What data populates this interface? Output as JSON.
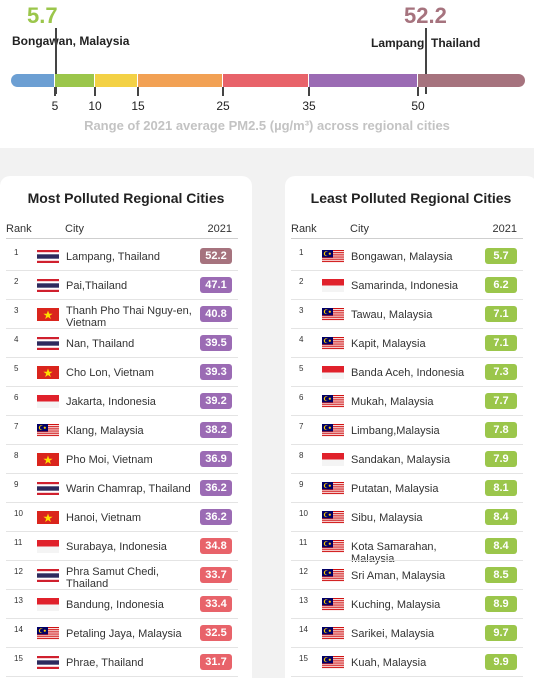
{
  "range": {
    "min": {
      "value": "5.7",
      "city": "Bongawan, Malaysia",
      "color": "#9bc64b"
    },
    "max": {
      "value": "52.2",
      "city": "Lampang, Thailand",
      "color": "#a6737e"
    },
    "caption": "Range of 2021 average PM2.5 (µg/m³) across regional cities",
    "ticks": [
      "5",
      "10",
      "15",
      "25",
      "35",
      "50"
    ],
    "bands": [
      {
        "from": 0,
        "to": 5,
        "color": "#6c9fd3"
      },
      {
        "from": 5,
        "to": 10,
        "color": "#9bc64b"
      },
      {
        "from": 10,
        "to": 15,
        "color": "#f3d145"
      },
      {
        "from": 15,
        "to": 25,
        "color": "#f2a154"
      },
      {
        "from": 25,
        "to": 35,
        "color": "#e8636a"
      },
      {
        "from": 35,
        "to": 50,
        "color": "#9b6bb4"
      },
      {
        "from": 50,
        "to": 62,
        "color": "#a6737e"
      }
    ]
  },
  "chart_data": [
    {
      "type": "table",
      "title": "Most Polluted Regional Cities",
      "columns": [
        "Rank",
        "City",
        "2021"
      ],
      "rows": [
        {
          "rank": "1",
          "city": "Lampang, Thailand",
          "flag": "th",
          "value": "52.2",
          "color": "#a6737e"
        },
        {
          "rank": "2",
          "city": "Pai,Thailand",
          "flag": "th",
          "value": "47.1",
          "color": "#9b6bb4"
        },
        {
          "rank": "3",
          "city": "Thanh Pho Thai Nguy-en, Vietnam",
          "flag": "vn",
          "value": "40.8",
          "color": "#9b6bb4"
        },
        {
          "rank": "4",
          "city": "Nan, Thailand",
          "flag": "th",
          "value": "39.5",
          "color": "#9b6bb4"
        },
        {
          "rank": "5",
          "city": "Cho Lon, Vietnam",
          "flag": "vn",
          "value": "39.3",
          "color": "#9b6bb4"
        },
        {
          "rank": "6",
          "city": "Jakarta, Indonesia",
          "flag": "id",
          "value": "39.2",
          "color": "#9b6bb4"
        },
        {
          "rank": "7",
          "city": "Klang, Malaysia",
          "flag": "my",
          "value": "38.2",
          "color": "#9b6bb4"
        },
        {
          "rank": "8",
          "city": "Pho Moi, Vietnam",
          "flag": "vn",
          "value": "36.9",
          "color": "#9b6bb4"
        },
        {
          "rank": "9",
          "city": "Warin Chamrap, Thailand",
          "flag": "th",
          "value": "36.2",
          "color": "#9b6bb4"
        },
        {
          "rank": "10",
          "city": "Hanoi, Vietnam",
          "flag": "vn",
          "value": "36.2",
          "color": "#9b6bb4"
        },
        {
          "rank": "11",
          "city": "Surabaya, Indonesia",
          "flag": "id",
          "value": "34.8",
          "color": "#e8636a"
        },
        {
          "rank": "12",
          "city": "Phra Samut Chedi, Thailand",
          "flag": "th",
          "value": "33.7",
          "color": "#e8636a"
        },
        {
          "rank": "13",
          "city": "Bandung, Indonesia",
          "flag": "id",
          "value": "33.4",
          "color": "#e8636a"
        },
        {
          "rank": "14",
          "city": "Petaling Jaya, Malaysia",
          "flag": "my",
          "value": "32.5",
          "color": "#e8636a"
        },
        {
          "rank": "15",
          "city": "Phrae, Thailand",
          "flag": "th",
          "value": "31.7",
          "color": "#e8636a"
        }
      ]
    },
    {
      "type": "table",
      "title": "Least Polluted Regional Cities",
      "columns": [
        "Rank",
        "City",
        "2021"
      ],
      "rows": [
        {
          "rank": "1",
          "city": "Bongawan, Malaysia",
          "flag": "my",
          "value": "5.7",
          "color": "#9bc64b"
        },
        {
          "rank": "2",
          "city": "Samarinda, Indonesia",
          "flag": "id",
          "value": "6.2",
          "color": "#9bc64b"
        },
        {
          "rank": "3",
          "city": "Tawau, Malaysia",
          "flag": "my",
          "value": "7.1",
          "color": "#9bc64b"
        },
        {
          "rank": "4",
          "city": "Kapit, Malaysia",
          "flag": "my",
          "value": "7.1",
          "color": "#9bc64b"
        },
        {
          "rank": "5",
          "city": "Banda Aceh, Indonesia",
          "flag": "id",
          "value": "7.3",
          "color": "#9bc64b"
        },
        {
          "rank": "6",
          "city": "Mukah, Malaysia",
          "flag": "my",
          "value": "7.7",
          "color": "#9bc64b"
        },
        {
          "rank": "7",
          "city": "Limbang,Malaysia",
          "flag": "my",
          "value": "7.8",
          "color": "#9bc64b"
        },
        {
          "rank": "8",
          "city": "Sandakan, Malaysia",
          "flag": "id",
          "value": "7.9",
          "color": "#9bc64b"
        },
        {
          "rank": "9",
          "city": "Putatan, Malaysia",
          "flag": "my",
          "value": "8.1",
          "color": "#9bc64b"
        },
        {
          "rank": "10",
          "city": "Sibu, Malaysia",
          "flag": "my",
          "value": "8.4",
          "color": "#9bc64b"
        },
        {
          "rank": "11",
          "city": "Kota Samarahan, Malaysia",
          "flag": "my",
          "value": "8.4",
          "color": "#9bc64b"
        },
        {
          "rank": "12",
          "city": "Sri Aman, Malaysia",
          "flag": "my",
          "value": "8.5",
          "color": "#9bc64b"
        },
        {
          "rank": "13",
          "city": "Kuching, Malaysia",
          "flag": "my",
          "value": "8.9",
          "color": "#9bc64b"
        },
        {
          "rank": "14",
          "city": "Sarikei, Malaysia",
          "flag": "my",
          "value": "9.7",
          "color": "#9bc64b"
        },
        {
          "rank": "15",
          "city": "Kuah, Malaysia",
          "flag": "my",
          "value": "9.9",
          "color": "#9bc64b"
        }
      ]
    }
  ]
}
